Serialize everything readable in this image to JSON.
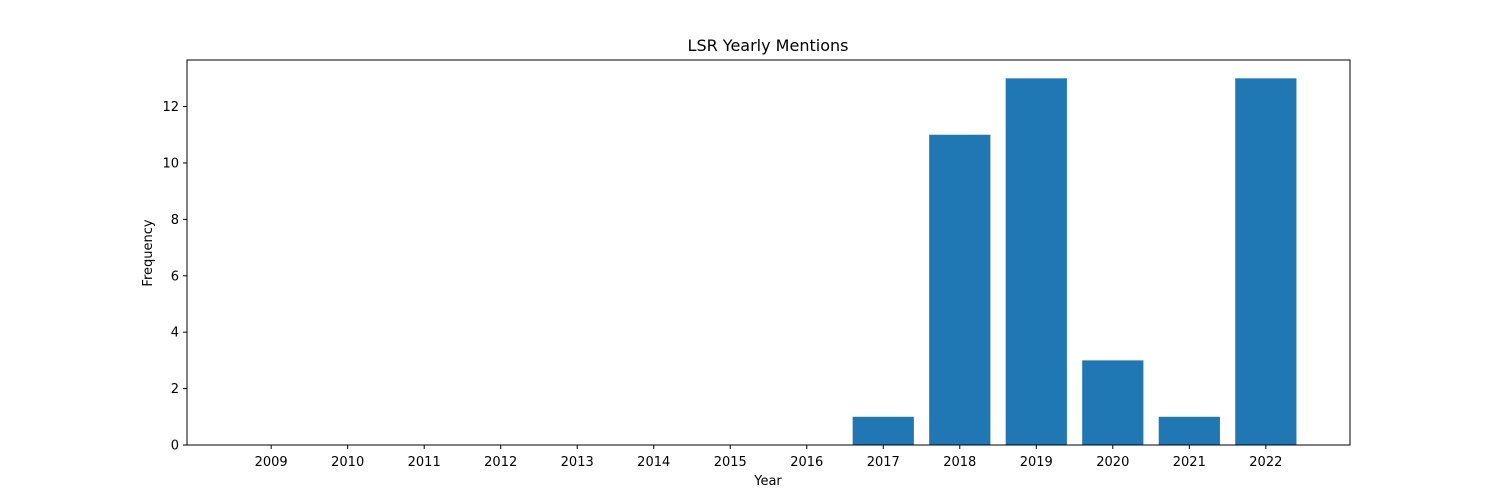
{
  "chart_data": {
    "type": "bar",
    "title": "LSR Yearly Mentions",
    "xlabel": "Year",
    "ylabel": "Frequency",
    "categories": [
      "2009",
      "2010",
      "2011",
      "2012",
      "2013",
      "2014",
      "2015",
      "2016",
      "2017",
      "2018",
      "2019",
      "2020",
      "2021",
      "2022"
    ],
    "values": [
      0,
      0,
      0,
      0,
      0,
      0,
      0,
      0,
      1,
      11,
      13,
      3,
      1,
      13
    ],
    "ylim": [
      0,
      13.65
    ],
    "yticks": [
      0,
      2,
      4,
      6,
      8,
      10,
      12
    ],
    "grid": false,
    "color": "#1f77b4"
  }
}
